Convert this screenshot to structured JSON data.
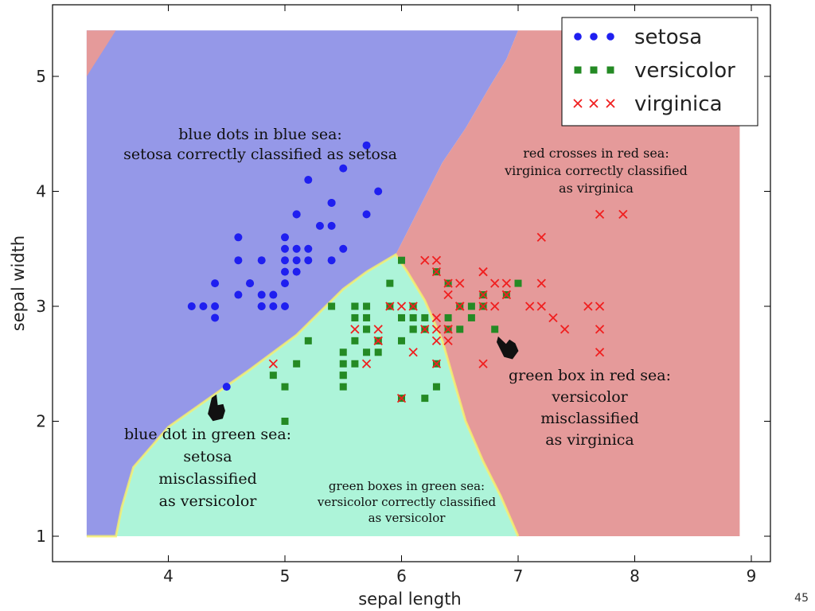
{
  "slide": {
    "page_number": "45"
  },
  "colors": {
    "blue_region": "#9598e8",
    "green_region": "#adf4d9",
    "red_region": "#e59a9a",
    "setosa": "#1f1ff0",
    "versicolor": "#248a24",
    "virginica": "#f01f1f"
  },
  "chart_data": {
    "type": "scatter",
    "title": "",
    "xlabel": "sepal length",
    "ylabel": "sepal width",
    "xlim": [
      3.0,
      9.2
    ],
    "ylim": [
      0.8,
      5.6
    ],
    "x_ticks": [
      4,
      5,
      6,
      7,
      8,
      9
    ],
    "x_tick_labels": [
      "4",
      "5",
      "6",
      "7",
      "8",
      "9"
    ],
    "y_ticks": [
      1,
      2,
      3,
      4,
      5
    ],
    "y_tick_labels": [
      "1",
      "2",
      "3",
      "4",
      "5"
    ],
    "grid": false,
    "legend_position": "top-right",
    "decision_regions": [
      {
        "class": "setosa",
        "polygon": [
          [
            3.3,
            5.4
          ],
          [
            3.3,
            1.0
          ],
          [
            3.55,
            1.0
          ],
          [
            3.6,
            1.25
          ],
          [
            3.7,
            1.6
          ],
          [
            4.0,
            1.95
          ],
          [
            4.35,
            2.2
          ],
          [
            4.7,
            2.45
          ],
          [
            5.1,
            2.75
          ],
          [
            5.3,
            2.95
          ],
          [
            5.5,
            3.15
          ],
          [
            5.7,
            3.3
          ],
          [
            5.95,
            3.45
          ],
          [
            6.15,
            3.85
          ],
          [
            6.35,
            4.25
          ],
          [
            6.55,
            4.55
          ],
          [
            6.75,
            4.9
          ],
          [
            6.9,
            5.15
          ],
          [
            7.0,
            5.4
          ]
        ]
      },
      {
        "class": "versicolor",
        "polygon": [
          [
            3.3,
            1.0
          ],
          [
            3.55,
            1.0
          ],
          [
            3.6,
            1.25
          ],
          [
            3.7,
            1.6
          ],
          [
            4.0,
            1.95
          ],
          [
            4.35,
            2.2
          ],
          [
            4.7,
            2.45
          ],
          [
            5.1,
            2.75
          ],
          [
            5.3,
            2.95
          ],
          [
            5.5,
            3.15
          ],
          [
            5.7,
            3.3
          ],
          [
            5.95,
            3.45
          ],
          [
            6.05,
            3.3
          ],
          [
            6.2,
            3.05
          ],
          [
            6.35,
            2.7
          ],
          [
            6.45,
            2.35
          ],
          [
            6.55,
            2.0
          ],
          [
            6.7,
            1.65
          ],
          [
            6.85,
            1.35
          ],
          [
            7.0,
            1.0
          ]
        ]
      },
      {
        "class": "virginica",
        "polygon": [
          [
            7.0,
            5.4
          ],
          [
            8.9,
            5.4
          ],
          [
            8.9,
            1.0
          ],
          [
            7.0,
            1.0
          ],
          [
            6.85,
            1.35
          ],
          [
            6.7,
            1.65
          ],
          [
            6.55,
            2.0
          ],
          [
            6.45,
            2.35
          ],
          [
            6.35,
            2.7
          ],
          [
            6.2,
            3.05
          ],
          [
            6.05,
            3.3
          ],
          [
            5.95,
            3.45
          ],
          [
            6.15,
            3.85
          ],
          [
            6.35,
            4.25
          ],
          [
            6.55,
            4.55
          ],
          [
            6.75,
            4.9
          ],
          [
            6.9,
            5.15
          ]
        ]
      },
      {
        "class": "virginica",
        "polygon": [
          [
            3.3,
            5.4
          ],
          [
            3.3,
            5.0
          ],
          [
            3.55,
            5.4
          ]
        ]
      }
    ],
    "series": [
      {
        "name": "setosa",
        "marker": "circle",
        "points": [
          [
            5.1,
            3.5
          ],
          [
            4.9,
            3.0
          ],
          [
            4.7,
            3.2
          ],
          [
            4.6,
            3.1
          ],
          [
            5.0,
            3.6
          ],
          [
            5.4,
            3.9
          ],
          [
            4.6,
            3.4
          ],
          [
            5.0,
            3.4
          ],
          [
            4.4,
            2.9
          ],
          [
            4.9,
            3.1
          ],
          [
            5.4,
            3.7
          ],
          [
            4.8,
            3.4
          ],
          [
            4.8,
            3.0
          ],
          [
            4.3,
            3.0
          ],
          [
            5.8,
            4.0
          ],
          [
            5.7,
            4.4
          ],
          [
            5.1,
            3.8
          ],
          [
            5.7,
            3.8
          ],
          [
            5.2,
            4.1
          ],
          [
            5.5,
            4.2
          ],
          [
            5.2,
            3.4
          ],
          [
            4.7,
            3.2
          ],
          [
            5.4,
            3.4
          ],
          [
            5.2,
            3.5
          ],
          [
            5.0,
            3.2
          ],
          [
            5.5,
            3.5
          ],
          [
            4.4,
            3.0
          ],
          [
            5.1,
            3.4
          ],
          [
            4.5,
            2.3
          ],
          [
            4.4,
            3.2
          ],
          [
            5.0,
            3.5
          ],
          [
            5.1,
            3.8
          ],
          [
            4.8,
            3.0
          ],
          [
            5.3,
            3.7
          ],
          [
            5.0,
            3.3
          ],
          [
            4.6,
            3.6
          ],
          [
            5.1,
            3.3
          ],
          [
            4.8,
            3.1
          ],
          [
            5.4,
            3.9
          ],
          [
            5.0,
            3.0
          ],
          [
            4.2,
            3.0
          ]
        ]
      },
      {
        "name": "versicolor",
        "marker": "square",
        "points": [
          [
            7.0,
            3.2
          ],
          [
            6.4,
            3.2
          ],
          [
            6.9,
            3.1
          ],
          [
            5.5,
            2.3
          ],
          [
            6.5,
            2.8
          ],
          [
            5.7,
            2.8
          ],
          [
            6.3,
            3.3
          ],
          [
            4.9,
            2.4
          ],
          [
            6.6,
            2.9
          ],
          [
            5.2,
            2.7
          ],
          [
            5.0,
            2.0
          ],
          [
            5.9,
            3.0
          ],
          [
            6.0,
            2.2
          ],
          [
            6.1,
            2.9
          ],
          [
            5.6,
            2.9
          ],
          [
            6.7,
            3.1
          ],
          [
            5.6,
            3.0
          ],
          [
            5.8,
            2.7
          ],
          [
            6.2,
            2.2
          ],
          [
            5.6,
            2.5
          ],
          [
            5.9,
            3.2
          ],
          [
            6.1,
            2.8
          ],
          [
            6.3,
            2.5
          ],
          [
            6.1,
            2.8
          ],
          [
            6.4,
            2.9
          ],
          [
            6.6,
            3.0
          ],
          [
            6.8,
            2.8
          ],
          [
            6.7,
            3.0
          ],
          [
            6.0,
            2.9
          ],
          [
            5.7,
            2.6
          ],
          [
            5.5,
            2.4
          ],
          [
            5.5,
            2.4
          ],
          [
            5.8,
            2.7
          ],
          [
            6.0,
            2.7
          ],
          [
            5.4,
            3.0
          ],
          [
            6.0,
            3.4
          ],
          [
            6.7,
            3.1
          ],
          [
            6.3,
            2.3
          ],
          [
            5.6,
            3.0
          ],
          [
            5.5,
            2.5
          ],
          [
            5.5,
            2.6
          ],
          [
            6.1,
            3.0
          ],
          [
            5.8,
            2.6
          ],
          [
            5.0,
            2.3
          ],
          [
            5.6,
            2.7
          ],
          [
            5.7,
            3.0
          ],
          [
            5.7,
            2.9
          ],
          [
            6.2,
            2.9
          ],
          [
            5.1,
            2.5
          ],
          [
            5.7,
            2.8
          ],
          [
            6.5,
            3.0
          ],
          [
            6.2,
            2.8
          ],
          [
            6.4,
            2.8
          ]
        ]
      },
      {
        "name": "virginica",
        "marker": "x",
        "points": [
          [
            6.3,
            3.3
          ],
          [
            5.8,
            2.7
          ],
          [
            7.1,
            3.0
          ],
          [
            6.3,
            2.9
          ],
          [
            6.5,
            3.0
          ],
          [
            7.6,
            3.0
          ],
          [
            4.9,
            2.5
          ],
          [
            7.3,
            2.9
          ],
          [
            6.7,
            2.5
          ],
          [
            7.2,
            3.6
          ],
          [
            6.5,
            3.2
          ],
          [
            6.4,
            2.7
          ],
          [
            6.8,
            3.0
          ],
          [
            5.7,
            2.5
          ],
          [
            5.8,
            2.8
          ],
          [
            6.4,
            3.2
          ],
          [
            6.5,
            3.0
          ],
          [
            7.7,
            3.8
          ],
          [
            7.7,
            2.6
          ],
          [
            6.0,
            2.2
          ],
          [
            6.9,
            3.2
          ],
          [
            5.6,
            2.8
          ],
          [
            7.7,
            2.8
          ],
          [
            6.3,
            2.7
          ],
          [
            6.7,
            3.3
          ],
          [
            7.2,
            3.2
          ],
          [
            6.2,
            2.8
          ],
          [
            6.1,
            3.0
          ],
          [
            6.4,
            2.8
          ],
          [
            7.2,
            3.0
          ],
          [
            7.4,
            2.8
          ],
          [
            7.9,
            3.8
          ],
          [
            6.4,
            2.8
          ],
          [
            6.3,
            2.8
          ],
          [
            6.1,
            2.6
          ],
          [
            7.7,
            3.0
          ],
          [
            6.3,
            3.4
          ],
          [
            6.4,
            3.1
          ],
          [
            6.0,
            3.0
          ],
          [
            6.9,
            3.1
          ],
          [
            6.7,
            3.1
          ],
          [
            6.9,
            3.1
          ],
          [
            5.8,
            2.7
          ],
          [
            6.8,
            3.2
          ],
          [
            6.7,
            3.3
          ],
          [
            6.7,
            3.0
          ],
          [
            6.3,
            2.5
          ],
          [
            6.5,
            3.0
          ],
          [
            6.2,
            3.4
          ],
          [
            5.9,
            3.0
          ]
        ]
      }
    ],
    "annotations": [
      {
        "key": "blue_in_blue",
        "lines": [
          "blue dots in blue sea:",
          "setosa correctly classified as setosa"
        ],
        "color": "#111111"
      },
      {
        "key": "red_in_red",
        "lines": [
          "red crosses in red sea:",
          "virginica correctly classified",
          "as virginica"
        ],
        "color": "#111111"
      },
      {
        "key": "green_in_red",
        "lines": [
          "green box in red sea:",
          "versicolor",
          "misclassified",
          "as virginica"
        ],
        "color": "#111111"
      },
      {
        "key": "blue_in_green",
        "lines": [
          "blue dot in green sea:",
          "setosa",
          "misclassified",
          "as versicolor"
        ],
        "color": "#111111"
      },
      {
        "key": "green_in_green",
        "lines": [
          "green boxes in green sea:",
          "versicolor correctly classified",
          "as versicolor"
        ],
        "color": "#111111"
      }
    ]
  }
}
